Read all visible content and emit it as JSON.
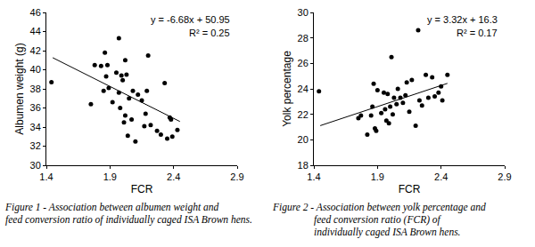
{
  "chart_data": [
    {
      "type": "scatter",
      "x_label": "FCR",
      "y_label": "Albumen weight (g)",
      "x": [
        1.44,
        1.75,
        1.78,
        1.83,
        1.85,
        1.86,
        1.87,
        1.88,
        1.89,
        1.92,
        1.95,
        1.97,
        1.97,
        1.98,
        1.99,
        2.0,
        2.01,
        2.02,
        2.02,
        2.03,
        2.04,
        2.05,
        2.07,
        2.08,
        2.1,
        2.12,
        2.15,
        2.17,
        2.18,
        2.19,
        2.2,
        2.22,
        2.27,
        2.3,
        2.33,
        2.35,
        2.37,
        2.39,
        2.43,
        2.38
      ],
      "values": [
        38.7,
        36.4,
        40.5,
        40.4,
        37.8,
        41.8,
        39.3,
        40.5,
        38.1,
        36.6,
        39.7,
        43.3,
        37.6,
        36.0,
        39.4,
        38.9,
        34.5,
        41.0,
        35.2,
        39.5,
        33.1,
        37.0,
        34.8,
        37.8,
        32.5,
        37.4,
        36.8,
        34.1,
        35.4,
        37.8,
        41.5,
        34.2,
        33.6,
        33.2,
        38.6,
        32.8,
        35.0,
        33.0,
        33.7,
        34.8
      ],
      "color": "#000000",
      "marker": "circle",
      "trendline": {
        "x": [
          1.45,
          2.45
        ],
        "values": [
          41.26,
          34.58
        ],
        "line_style": "solid"
      },
      "annotations": [
        "y = -6.68x + 50.95",
        "R² = 0.25"
      ],
      "xlim": [
        1.4,
        2.9
      ],
      "xticks": [
        1.4,
        1.9,
        2.4,
        2.9
      ],
      "ylim": [
        30,
        46
      ],
      "yticks": [
        30,
        32,
        34,
        36,
        38,
        40,
        42,
        44,
        46
      ],
      "grid": false,
      "caption": [
        "Figure 1 - Association between albumen weight and",
        "feed conversion ratio of individually caged ISA Brown hens."
      ]
    },
    {
      "type": "scatter",
      "x_label": "FCR",
      "y_label": "Yolk percentage",
      "x": [
        1.44,
        1.75,
        1.77,
        1.82,
        1.85,
        1.86,
        1.87,
        1.88,
        1.89,
        1.9,
        1.93,
        1.95,
        1.96,
        1.97,
        1.98,
        1.99,
        2.0,
        2.01,
        2.02,
        2.03,
        2.05,
        2.06,
        2.08,
        2.1,
        2.12,
        2.13,
        2.15,
        2.17,
        2.2,
        2.22,
        2.23,
        2.25,
        2.28,
        2.3,
        2.33,
        2.35,
        2.38,
        2.4,
        2.45,
        2.41
      ],
      "values": [
        23.8,
        21.7,
        21.9,
        20.4,
        21.9,
        22.6,
        24.4,
        20.9,
        20.7,
        23.9,
        22.1,
        23.7,
        22.4,
        21.5,
        23.6,
        21.3,
        22.6,
        26.5,
        22.0,
        23.3,
        22.8,
        24.0,
        23.3,
        22.9,
        23.5,
        24.5,
        22.2,
        24.7,
        21.1,
        28.6,
        23.1,
        22.7,
        25.1,
        23.3,
        24.9,
        23.4,
        23.7,
        24.2,
        25.1,
        23.1
      ],
      "color": "#000000",
      "marker": "circle",
      "trendline": {
        "x": [
          1.45,
          2.45
        ],
        "values": [
          21.11,
          24.43
        ],
        "line_style": "solid"
      },
      "annotations": [
        "y = 3.32x + 16.3",
        "R² = 0.17"
      ],
      "xlim": [
        1.4,
        2.9
      ],
      "xticks": [
        1.4,
        1.9,
        2.4,
        2.9
      ],
      "ylim": [
        18,
        30
      ],
      "yticks": [
        18,
        20,
        22,
        24,
        26,
        28,
        30
      ],
      "grid": false,
      "caption": [
        "Figure 2 - Association between yolk percentage and",
        "feed conversion ratio (FCR) of",
        "individually caged ISA Brown hens."
      ]
    }
  ]
}
